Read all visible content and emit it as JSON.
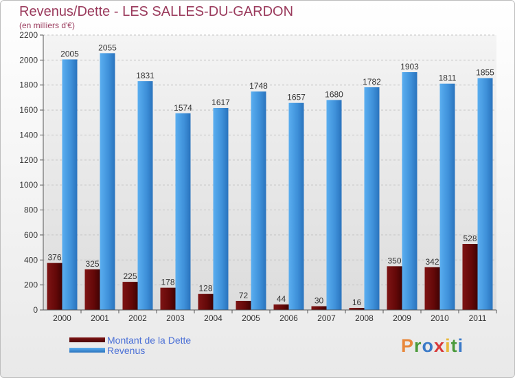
{
  "header": {
    "title": "Revenus/Dette - LES SALLES-DU-GARDON",
    "subtitle": "(en milliers d'€)"
  },
  "brand": {
    "letters": [
      "P",
      "r",
      "o",
      "x",
      "i",
      "t",
      "i"
    ],
    "colors": [
      "#e8873a",
      "#4a9a3a",
      "#3a7ac8",
      "#d83a3a",
      "#e8b83a",
      "#4a9a3a",
      "#3a7ac8"
    ]
  },
  "chart_data": {
    "type": "bar",
    "categories": [
      "2000",
      "2001",
      "2002",
      "2003",
      "2004",
      "2005",
      "2006",
      "2007",
      "2008",
      "2009",
      "2010",
      "2011"
    ],
    "series": [
      {
        "name": "Montant de la Dette",
        "color": "#6b0a0a",
        "values": [
          376,
          325,
          225,
          178,
          128,
          72,
          44,
          30,
          16,
          350,
          342,
          528
        ]
      },
      {
        "name": "Revenus",
        "color": "#3d8fd8",
        "values": [
          2005,
          2055,
          1831,
          1574,
          1617,
          1748,
          1657,
          1680,
          1782,
          1903,
          1811,
          1855
        ]
      }
    ],
    "yticks": [
      0,
      200,
      400,
      600,
      800,
      1000,
      1200,
      1400,
      1600,
      1800,
      2000,
      2200
    ],
    "ylim": [
      0,
      2200
    ],
    "grid": true,
    "legend": "bottom-left"
  }
}
